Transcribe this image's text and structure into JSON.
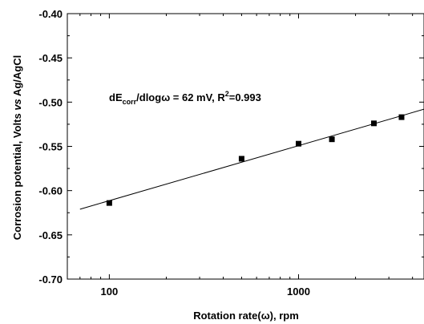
{
  "chart_data": {
    "type": "scatter",
    "x_scale": "log",
    "xlim": [
      60,
      4600
    ],
    "ylim": [
      -0.7,
      -0.4
    ],
    "xlabel": {
      "prefix": "Rotation rate",
      "omega": "(ω)",
      "suffix": ", rpm"
    },
    "ylabel": {
      "prefix": "Corrosion potential, Volts ",
      "vs": "vs",
      "suffix": " Ag/AgCl"
    },
    "x_ticks": [
      {
        "value": 100,
        "label": "100"
      },
      {
        "value": 1000,
        "label": "1000"
      }
    ],
    "y_ticks": [
      {
        "value": -0.4,
        "label": "-0.40"
      },
      {
        "value": -0.45,
        "label": "-0.45"
      },
      {
        "value": -0.5,
        "label": "-0.50"
      },
      {
        "value": -0.55,
        "label": "-0.55"
      },
      {
        "value": -0.6,
        "label": "-0.60"
      },
      {
        "value": -0.65,
        "label": "-0.65"
      },
      {
        "value": -0.7,
        "label": "-0.70"
      }
    ],
    "points": [
      {
        "x": 100,
        "y": -0.614
      },
      {
        "x": 500,
        "y": -0.564
      },
      {
        "x": 1000,
        "y": -0.547
      },
      {
        "x": 1500,
        "y": -0.542
      },
      {
        "x": 2500,
        "y": -0.524
      },
      {
        "x": 3500,
        "y": -0.517
      }
    ],
    "fit_line": {
      "x_start": 70,
      "y_start": -0.621,
      "x_end": 4600,
      "y_end": -0.508
    },
    "annotation": {
      "a": "dE",
      "sub": "corr",
      "b": "/dlog",
      "omega": "ω",
      "c": " = 62 mV, R",
      "sup": "2",
      "d": "=0.993"
    },
    "grid": false
  }
}
